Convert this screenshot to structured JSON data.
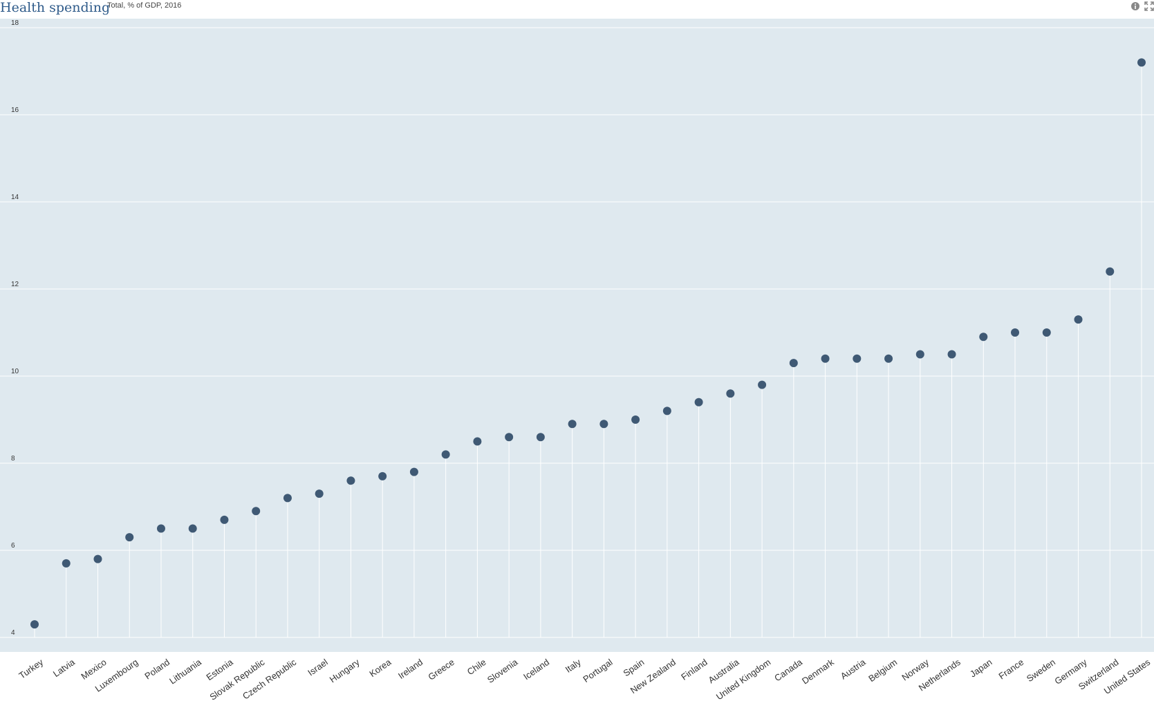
{
  "header": {
    "title": "Health spending",
    "subtitle": "Total, % of GDP, 2016"
  },
  "colors": {
    "plot_bg": "#dfe9ef",
    "marker": "#3f5974",
    "title": "#2f5b8a",
    "gridline": "#ffffff"
  },
  "icons": [
    "info-icon",
    "fullscreen-icon"
  ],
  "chart_data": {
    "type": "scatter",
    "style": "lollipop",
    "title": "Health spending",
    "subtitle": "Total, % of GDP, 2016",
    "xlabel": "",
    "ylabel": "",
    "ylim": [
      4,
      18
    ],
    "yticks": [
      4,
      6,
      8,
      10,
      12,
      14,
      16,
      18
    ],
    "grid": true,
    "legend": "none",
    "categories": [
      "Turkey",
      "Latvia",
      "Mexico",
      "Luxembourg",
      "Poland",
      "Lithuania",
      "Estonia",
      "Slovak Republic",
      "Czech Republic",
      "Israel",
      "Hungary",
      "Korea",
      "Ireland",
      "Greece",
      "Chile",
      "Slovenia",
      "Iceland",
      "Italy",
      "Portugal",
      "Spain",
      "New Zealand",
      "Finland",
      "Australia",
      "United Kingdom",
      "Canada",
      "Denmark",
      "Austria",
      "Belgium",
      "Norway",
      "Netherlands",
      "Japan",
      "France",
      "Sweden",
      "Germany",
      "Switzerland",
      "United States"
    ],
    "values": [
      4.3,
      5.7,
      5.8,
      6.3,
      6.5,
      6.5,
      6.7,
      6.9,
      7.2,
      7.3,
      7.6,
      7.7,
      7.8,
      8.2,
      8.5,
      8.6,
      8.6,
      8.9,
      8.9,
      9.0,
      9.2,
      9.4,
      9.6,
      9.8,
      10.3,
      10.4,
      10.4,
      10.4,
      10.5,
      10.5,
      10.9,
      11.0,
      11.0,
      11.3,
      12.4,
      17.2
    ]
  }
}
